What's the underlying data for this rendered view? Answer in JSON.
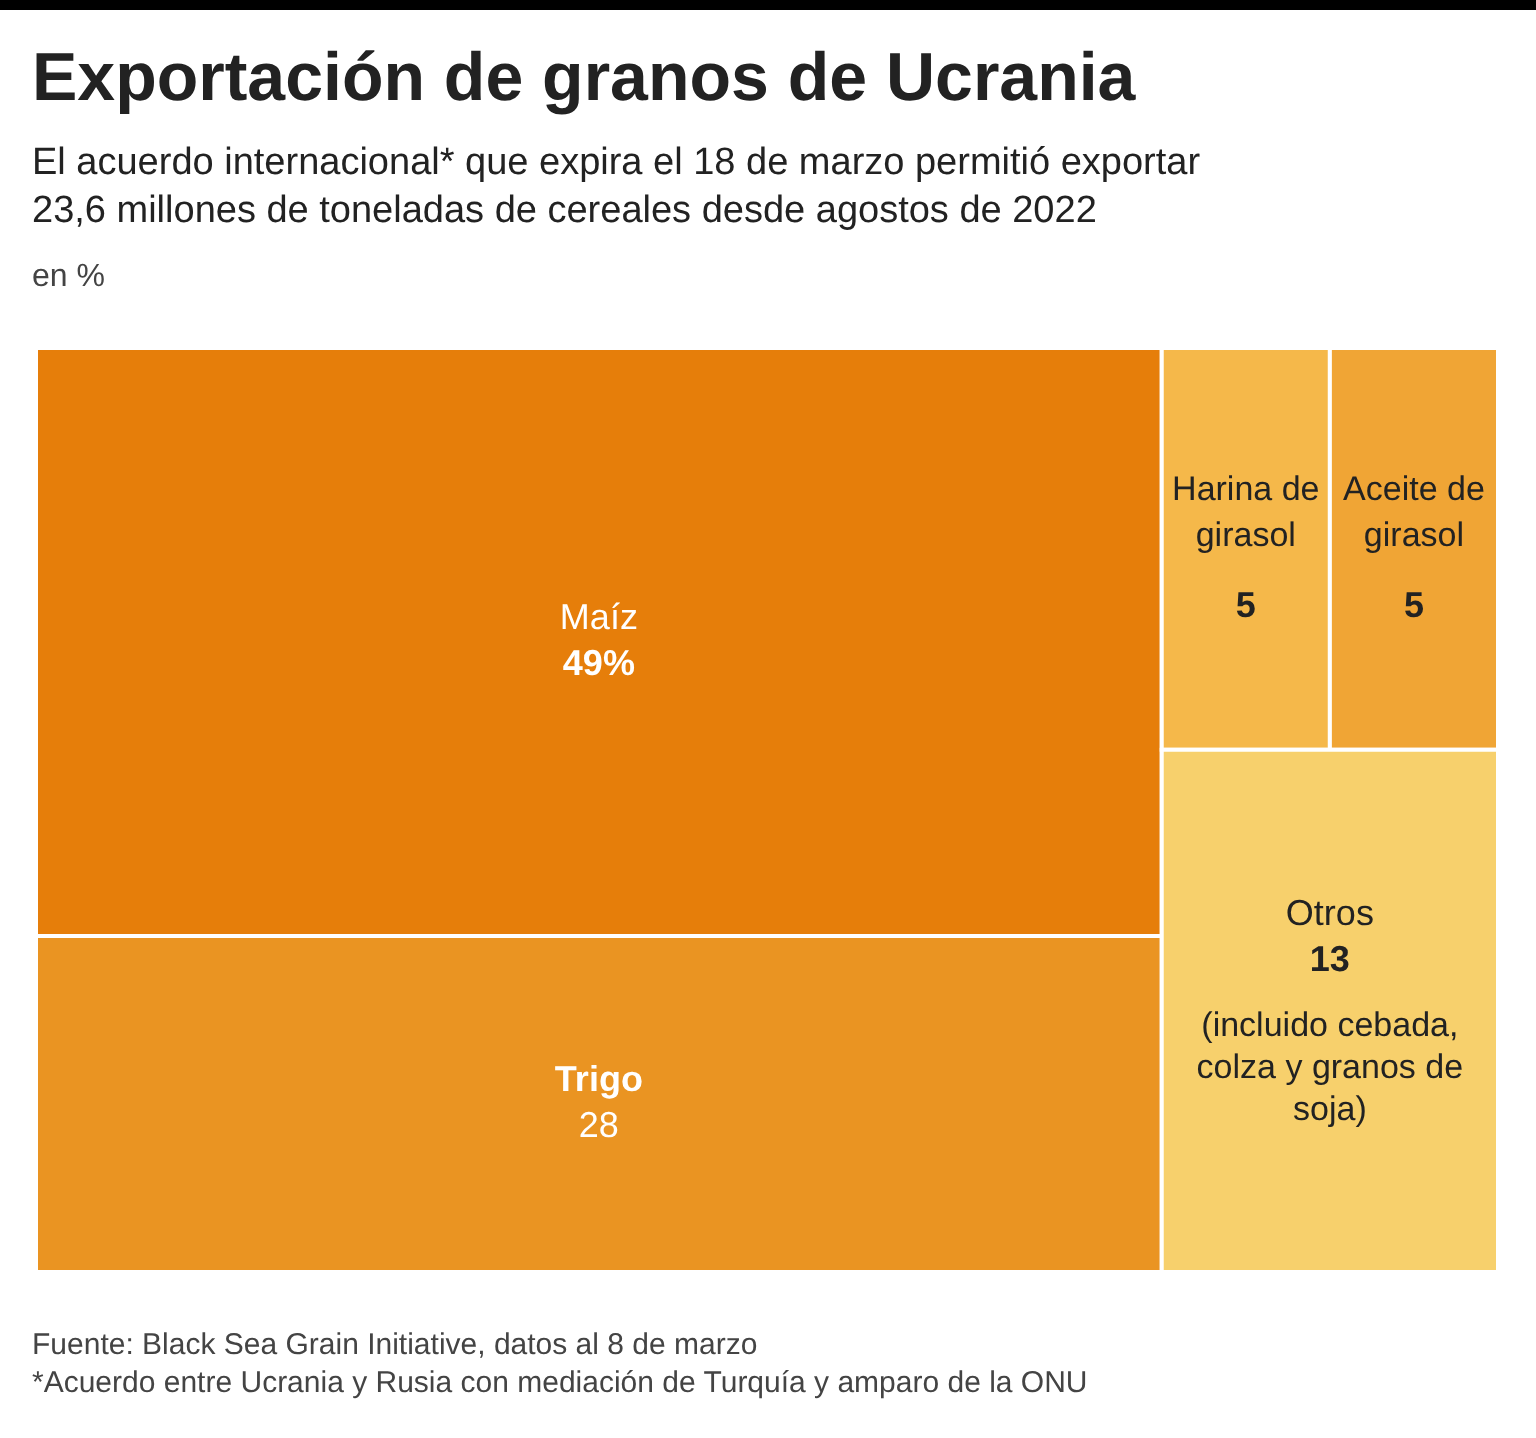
{
  "chart_data": {
    "type": "other",
    "title": "Exportación de granos de Ucrania",
    "subtitle": "El acuerdo internacional* que expira el 18 de marzo permitió exportar 23,6 millones de toneladas de cereales desde agostos de 2022",
    "ylabel": "en %",
    "categories": [
      "Maíz",
      "Trigo",
      "Harina de girasol",
      "Aceite de girasol",
      "Otros"
    ],
    "values": [
      49,
      28,
      5,
      5,
      13
    ],
    "value_labels": [
      "49%",
      "28",
      "5",
      "5",
      "13"
    ],
    "colors": [
      "#e67e0a",
      "#ea9422",
      "#f5b84a",
      "#f0a535",
      "#f7d06c"
    ],
    "annotations": [
      {
        "text": "(incluido cebada, colza y granos de soja)",
        "x": "Otros"
      },
      "Fuente: Black Sea Grain Initiative, datos al 8 de marzo",
      "*Acuerdo entre Ucrania y Rusia con mediación de Turquía y amparo de la ONU"
    ]
  }
}
